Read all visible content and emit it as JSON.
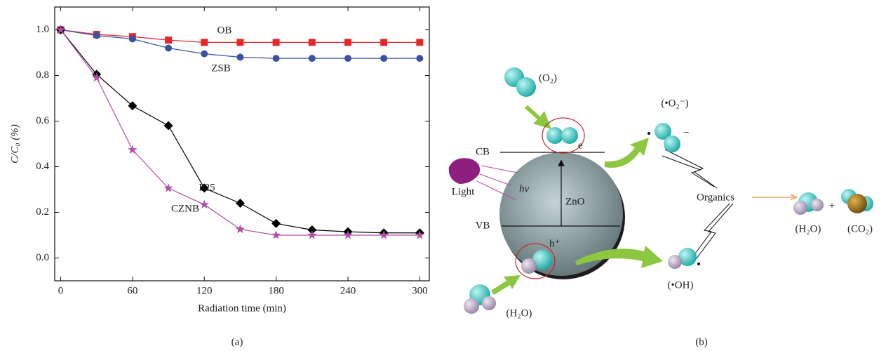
{
  "chart_data": {
    "type": "line",
    "x_label": "Radiation time (min)",
    "y_label": "C/C₀ (%)",
    "x": [
      0,
      30,
      60,
      90,
      120,
      150,
      180,
      210,
      240,
      270,
      300
    ],
    "xlim": [
      -5,
      308
    ],
    "ylim": [
      -0.1,
      1.1
    ],
    "xticks": [
      0,
      60,
      120,
      180,
      240,
      300
    ],
    "yticks": [
      {
        "value": 0,
        "label": "0.0"
      },
      0.2,
      0.4,
      0.6,
      0.8,
      {
        "value": 1,
        "label": "1.0"
      }
    ],
    "series": [
      {
        "name": "OB",
        "color": "#e8262a",
        "marker": "square",
        "values": [
          1,
          0.98,
          0.97,
          0.955,
          0.945,
          0.945,
          0.945,
          0.945,
          0.945,
          0.945,
          0.945
        ]
      },
      {
        "name": "ZSB",
        "color": "#3853a4",
        "marker": "circle",
        "values": [
          1,
          0.975,
          0.96,
          0.92,
          0.895,
          0.88,
          0.875,
          0.875,
          0.875,
          0.875,
          0.875
        ]
      },
      {
        "name": "P25",
        "color": "#000000",
        "marker": "diamond",
        "values": [
          1,
          0.805,
          0.667,
          0.58,
          0.306,
          0.24,
          0.151,
          0.123,
          0.115,
          0.11,
          0.11
        ]
      },
      {
        "name": "CZNB",
        "color": "#b04fa8",
        "marker": "star",
        "values": [
          1,
          0.79,
          0.474,
          0.306,
          0.234,
          0.126,
          0.1,
          0.1,
          0.1,
          0.1,
          0.1
        ]
      }
    ]
  },
  "diagram": {
    "o2": "(O₂)",
    "superoxide": "(•O₂⁻)",
    "minus": "−",
    "cb": "CB",
    "vb": "VB",
    "electron": "e",
    "hole": "h⁺",
    "light": "Light",
    "hv": "hν",
    "zno": "ZnO",
    "organics": "Organics",
    "h2o_product": "(H₂O)",
    "plus": "+",
    "co2": "(CO₂)",
    "hydroxyl": "(•OH)",
    "h2o_reactant": "(H₂O)"
  },
  "captions": [
    "(a)",
    "(b)"
  ]
}
